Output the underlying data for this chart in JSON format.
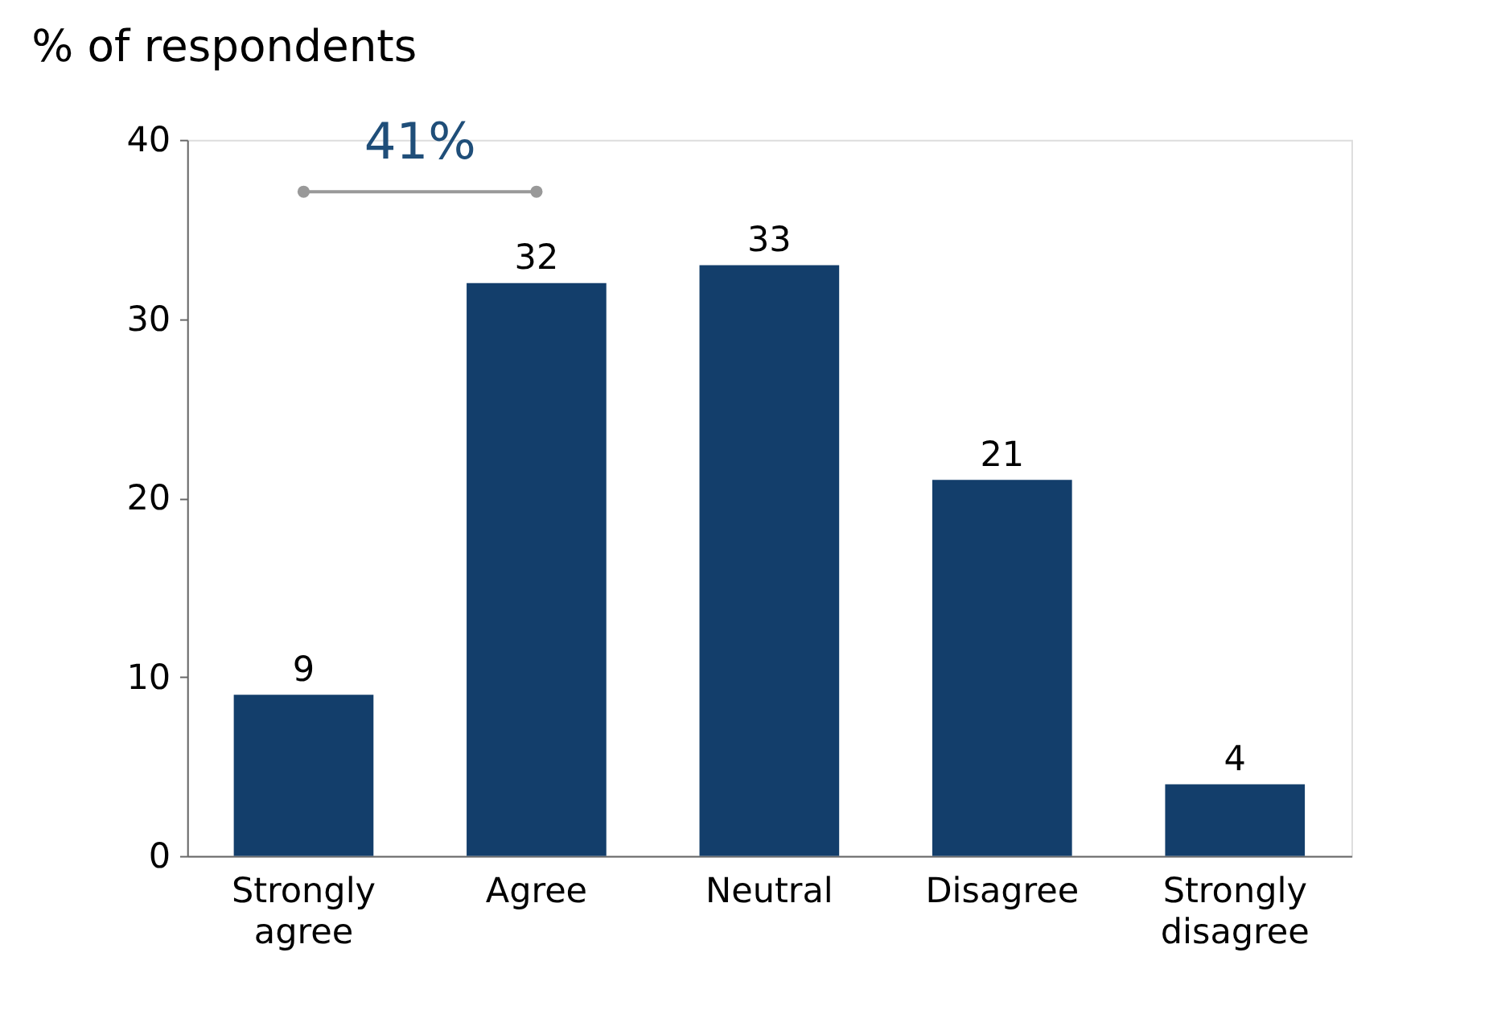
{
  "chart_data": {
    "type": "bar",
    "title": "% of respondents",
    "categories": [
      "Strongly agree",
      "Agree",
      "Neutral",
      "Disagree",
      "Strongly disagree"
    ],
    "values": [
      9,
      32,
      33,
      21,
      4
    ],
    "color": "#133e6b",
    "ylim": [
      0,
      40
    ],
    "yticks": [
      0,
      10,
      20,
      30,
      40
    ],
    "grid": false,
    "data_labels": true,
    "annotations": [
      "41%"
    ]
  }
}
